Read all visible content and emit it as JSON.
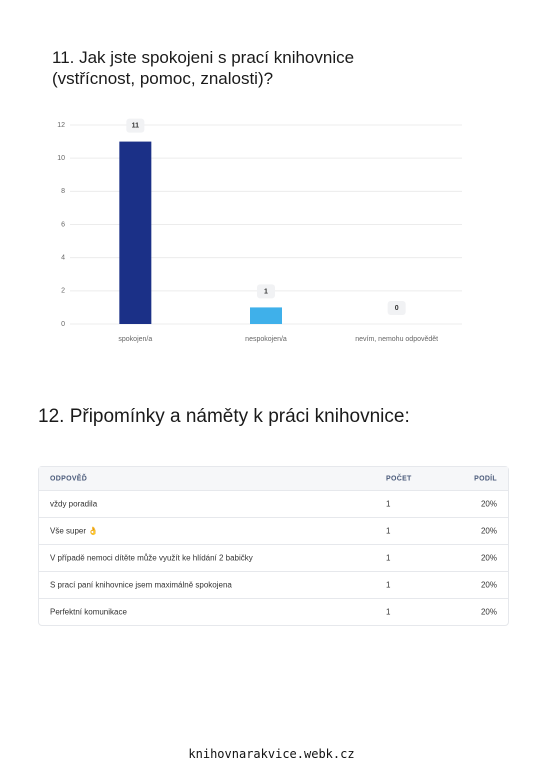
{
  "chart_data": {
    "type": "bar",
    "title": "11. Jak jste spokojeni s prací knihovnice (vstřícnost, pomoc, znalosti)?",
    "categories": [
      "spokojen/a",
      "nespokojen/a",
      "nevím, nemohu odpovědět"
    ],
    "values": [
      11,
      1,
      0
    ],
    "colors": [
      "#1b3087",
      "#3fb0ea",
      "#3fb0ea"
    ],
    "ylim": [
      0,
      12
    ],
    "yticks": [
      0,
      2,
      4,
      6,
      8,
      10,
      12
    ],
    "grid": true
  },
  "section": {
    "title": "12. Připomínky a náměty k práci knihovnice:"
  },
  "table": {
    "header": [
      "ODPOVĚĎ",
      "POČET",
      "PODÍL"
    ],
    "rows": [
      [
        "vždy poradila",
        "1",
        "20%"
      ],
      [
        "Vše super 👌",
        "1",
        "20%"
      ],
      [
        "V případě nemoci dítěte může využít ke hlídání 2 babičky",
        "1",
        "20%"
      ],
      [
        "S prací paní knihovnice jsem maximálně spokojena",
        "1",
        "20%"
      ],
      [
        "Perfektní komunikace",
        "1",
        "20%"
      ]
    ]
  },
  "footer": "knihovnarakvice.webk.cz"
}
